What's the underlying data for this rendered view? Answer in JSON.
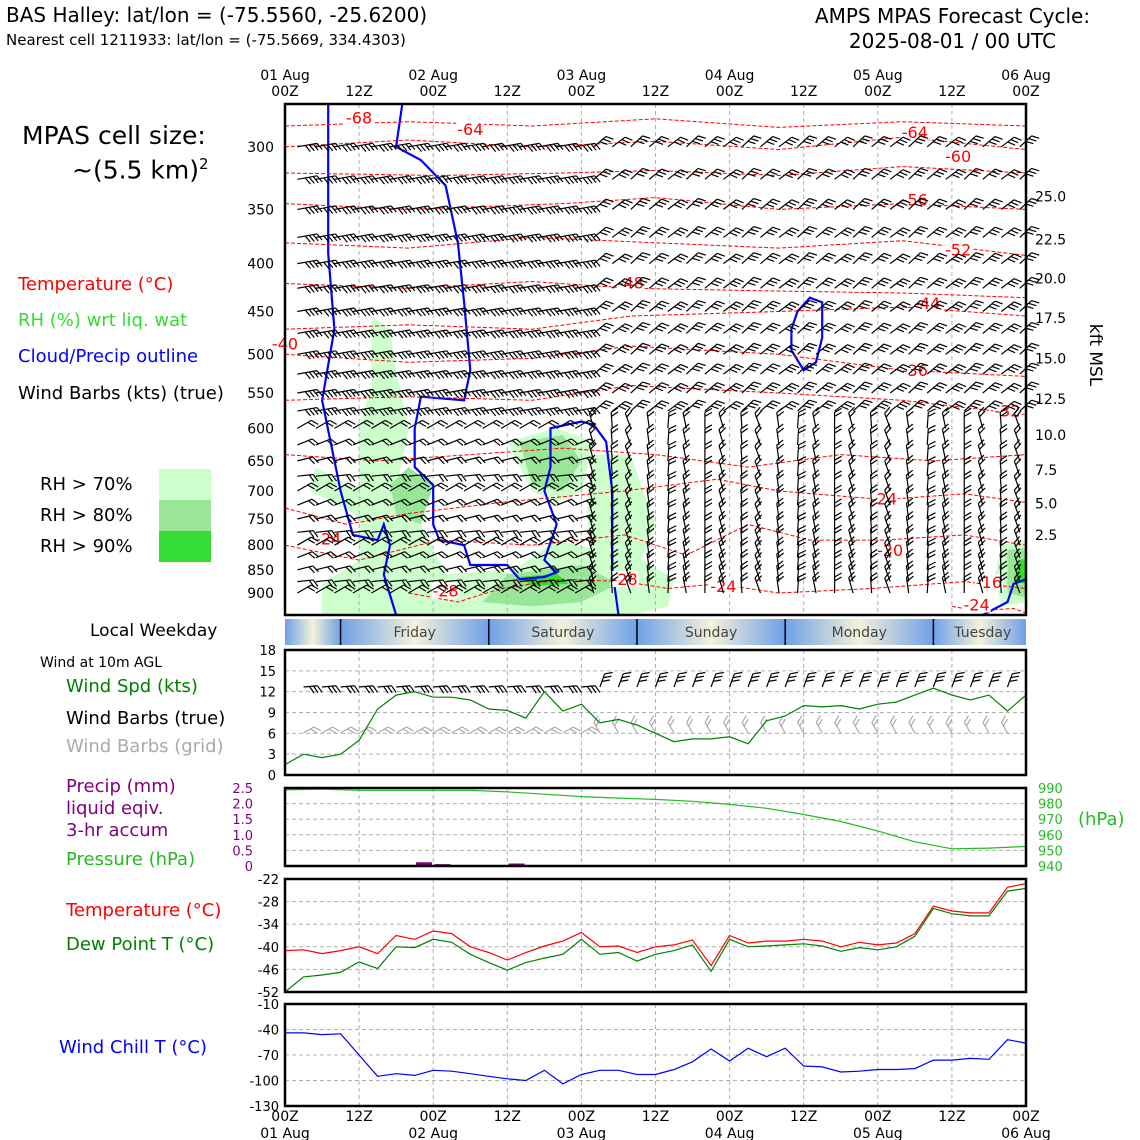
{
  "header": {
    "station_title": "BAS Halley: lat/lon = (-75.5560, -25.6200)",
    "nearest_cell": "Nearest cell 1211933: lat/lon = (-75.5669, 334.4303)",
    "forecast_line1": "AMPS MPAS Forecast Cycle:",
    "forecast_line2": "2025-08-01 / 00 UTC"
  },
  "cell_size": {
    "label": "MPAS cell size:",
    "value": "~(5.5 km)",
    "exponent": "2"
  },
  "legend": {
    "temperature": "Temperature (°C)",
    "rh": "RH (%) wrt liq. wat",
    "cloud": "Cloud/Precip outline",
    "wind": "Wind Barbs (kts) (true)",
    "rh70": "RH > 70%",
    "rh80": "RH > 80%",
    "rh90": "RH > 90%"
  },
  "colors": {
    "temperature": "#ff0000",
    "rh_label": "#33dd33",
    "cloud": "#0000ff",
    "rh70": "#ccffcc",
    "rh80": "#99e699",
    "rh90": "#33dd33",
    "wind_speed": "#008000",
    "barbs_grid": "#aaaaaa",
    "precip": "#800080",
    "pressure": "#22bb22",
    "dewpoint": "#008000",
    "wind_chill": "#0000ff",
    "grid": "#b0b0b0"
  },
  "time_axis": {
    "top_dates": [
      "01 Aug",
      "",
      "02 Aug",
      "",
      "03 Aug",
      "",
      "04 Aug",
      "",
      "05 Aug",
      "",
      "06 Aug"
    ],
    "hours": [
      "00Z",
      "12Z",
      "00Z",
      "12Z",
      "00Z",
      "12Z",
      "00Z",
      "12Z",
      "00Z",
      "12Z",
      "00Z"
    ],
    "bottom_dates": [
      "01 Aug",
      "",
      "02 Aug",
      "",
      "03 Aug",
      "",
      "04 Aug",
      "",
      "05 Aug",
      "",
      "06 Aug"
    ]
  },
  "weekday": {
    "label": "Local Weekday",
    "days": [
      "Friday",
      "Saturday",
      "Sunday",
      "Monday",
      "Tuesday"
    ]
  },
  "wind_panel": {
    "header": "Wind at 10m AGL",
    "speed_label": "Wind Spd (kts)",
    "barbs_true_label": "Wind Barbs (true)",
    "barbs_grid_label": "Wind Barbs (grid)"
  },
  "precip_panel": {
    "label_line1": "Precip (mm)",
    "label_line2": "liquid eqiv.",
    "label_line3": "3-hr accum",
    "pressure_label": "Pressure (hPa)",
    "right_unit": "(hPa)"
  },
  "temp_panel": {
    "temp_label": "Temperature (°C)",
    "dew_label": "Dew Point T (°C)"
  },
  "chill_panel": {
    "label": "Wind Chill T (°C)"
  },
  "chart_data": [
    {
      "type": "heatmap",
      "panel": "vertical_cross_section",
      "x_hours": [
        0,
        120
      ],
      "y_pressure_hpa": [
        950,
        270
      ],
      "y_ticks": [
        300,
        350,
        400,
        450,
        500,
        550,
        600,
        650,
        700,
        750,
        800,
        850,
        900
      ],
      "right_axis_label": "kft MSL",
      "right_ticks": [
        {
          "p": 339,
          "v": "25.0"
        },
        {
          "p": 377,
          "v": "22.5"
        },
        {
          "p": 415,
          "v": "20.0"
        },
        {
          "p": 457,
          "v": "17.5"
        },
        {
          "p": 505,
          "v": "15.0"
        },
        {
          "p": 558,
          "v": "12.5"
        },
        {
          "p": 610,
          "v": "10.0"
        },
        {
          "p": 665,
          "v": "7.5"
        },
        {
          "p": 722,
          "v": "5.0"
        },
        {
          "p": 780,
          "v": "2.5"
        }
      ],
      "temp_contour_labels": [
        {
          "x": 12,
          "p": 282,
          "v": "-68"
        },
        {
          "x": 30,
          "p": 290,
          "v": "-64"
        },
        {
          "x": 102,
          "p": 292,
          "v": "-64"
        },
        {
          "x": 109,
          "p": 310,
          "v": "-60"
        },
        {
          "x": 102,
          "p": 345,
          "v": "-56"
        },
        {
          "x": 109,
          "p": 390,
          "v": "-52"
        },
        {
          "x": 56,
          "p": 423,
          "v": "-48"
        },
        {
          "x": 104,
          "p": 445,
          "v": "-44"
        },
        {
          "x": 0,
          "p": 492,
          "v": "-40"
        },
        {
          "x": 102,
          "p": 525,
          "v": "-36"
        },
        {
          "x": 117,
          "p": 580,
          "v": "-32"
        },
        {
          "x": 97,
          "p": 720,
          "v": "-24"
        },
        {
          "x": 7,
          "p": 795,
          "v": "-24"
        },
        {
          "x": 98,
          "p": 818,
          "v": "-20"
        },
        {
          "x": 26,
          "p": 903,
          "v": "-28"
        },
        {
          "x": 55,
          "p": 878,
          "v": "-28"
        },
        {
          "x": 71,
          "p": 893,
          "v": "-24"
        },
        {
          "x": 114,
          "p": 885,
          "v": "-16"
        },
        {
          "x": 112,
          "p": 935,
          "v": "-24"
        }
      ]
    },
    {
      "type": "line",
      "panel": "wind_speed_10m",
      "title": "Wind Spd (kts)",
      "x_hours": [
        0,
        3,
        6,
        9,
        12,
        15,
        18,
        21,
        24,
        27,
        30,
        33,
        36,
        39,
        42,
        45,
        48,
        51,
        54,
        57,
        60,
        63,
        66,
        69,
        72,
        75,
        78,
        81,
        84,
        87,
        90,
        93,
        96,
        99,
        102,
        105,
        108,
        111,
        114,
        117,
        120
      ],
      "values": [
        1.5,
        3,
        2.5,
        3,
        5,
        9.5,
        11.5,
        12,
        11.2,
        11.2,
        10.8,
        9.5,
        9.3,
        8.2,
        12,
        9.2,
        10.2,
        7.5,
        8,
        7.2,
        6,
        4.8,
        5.2,
        5.2,
        5.5,
        4.5,
        7.8,
        8.5,
        10,
        9.8,
        10,
        9.5,
        10.2,
        10.5,
        11.5,
        12.5,
        11.5,
        10.8,
        11.5,
        9.2,
        11.5
      ],
      "ylim": [
        0,
        18
      ],
      "y_ticks": [
        0,
        3,
        6,
        9,
        12,
        15,
        18
      ]
    },
    {
      "type": "bar",
      "panel": "precip",
      "title": "Precip (mm)",
      "x_hours": [
        22.5,
        25.5,
        37.5
      ],
      "values": [
        0.12,
        0.06,
        0.08
      ],
      "ylim": [
        0,
        2.5
      ],
      "y_ticks": [
        "0",
        "0.5",
        "1.0",
        "1.5",
        "2.0",
        "2.5"
      ]
    },
    {
      "type": "line",
      "panel": "pressure",
      "title": "Pressure (hPa)",
      "x_hours": [
        0,
        6,
        12,
        24,
        30,
        36,
        42,
        48,
        54,
        60,
        66,
        72,
        78,
        84,
        90,
        96,
        102,
        108,
        114,
        120
      ],
      "values": [
        988.8,
        989.2,
        988.5,
        988.5,
        988.5,
        987.5,
        986,
        984.5,
        983.5,
        982.7,
        981.5,
        979.5,
        977,
        973,
        968.5,
        962.5,
        955.5,
        951,
        951.5,
        952.5
      ],
      "ylim": [
        940,
        990
      ],
      "y_ticks": [
        940,
        950,
        960,
        970,
        980,
        990
      ]
    },
    {
      "type": "line",
      "panel": "temperature_dewpoint",
      "x_hours": [
        0,
        3,
        6,
        9,
        12,
        15,
        18,
        21,
        24,
        27,
        30,
        33,
        36,
        39,
        42,
        45,
        48,
        51,
        54,
        57,
        60,
        63,
        66,
        69,
        72,
        75,
        78,
        81,
        84,
        87,
        90,
        93,
        96,
        99,
        102,
        105,
        108,
        111,
        114,
        117,
        120
      ],
      "series": [
        {
          "name": "Temperature (°C)",
          "values": [
            -41,
            -40.8,
            -41.8,
            -41,
            -40,
            -41.8,
            -37,
            -38,
            -35.8,
            -36.5,
            -40,
            -41.5,
            -43.5,
            -41.5,
            -39.8,
            -38.5,
            -36.2,
            -40,
            -39.8,
            -41.5,
            -40,
            -39.5,
            -38.2,
            -45,
            -37,
            -39,
            -38.5,
            -38.5,
            -38,
            -38.5,
            -40,
            -38.8,
            -39.5,
            -39,
            -36.5,
            -29.2,
            -30.5,
            -31,
            -31,
            -24.2,
            -23.2
          ]
        },
        {
          "name": "Dew Point T (°C)",
          "values": [
            -52,
            -48,
            -47.5,
            -46.8,
            -44,
            -45.8,
            -40,
            -40.2,
            -38,
            -38.8,
            -42,
            -44.2,
            -46.2,
            -44.2,
            -43,
            -42,
            -38,
            -42,
            -41.5,
            -43.8,
            -42,
            -41,
            -39.5,
            -46.5,
            -38,
            -40,
            -39.8,
            -39.5,
            -39.2,
            -39.8,
            -41.2,
            -40.2,
            -40.8,
            -40,
            -37.2,
            -29.8,
            -31.2,
            -31.8,
            -31.8,
            -25.2,
            -24.5
          ]
        }
      ],
      "ylim": [
        -52,
        -22
      ],
      "y_ticks": [
        -52,
        -46,
        -40,
        -34,
        -28,
        -22
      ]
    },
    {
      "type": "line",
      "panel": "wind_chill",
      "title": "Wind Chill T (°C)",
      "x_hours": [
        0,
        3,
        6,
        9,
        12,
        15,
        18,
        21,
        24,
        27,
        30,
        33,
        36,
        39,
        42,
        45,
        48,
        51,
        54,
        57,
        60,
        63,
        66,
        69,
        72,
        75,
        78,
        81,
        84,
        87,
        90,
        93,
        96,
        99,
        102,
        105,
        108,
        111,
        114,
        117,
        120
      ],
      "values": [
        -44,
        -44,
        -46,
        -45,
        -70,
        -95,
        -92,
        -94,
        -88,
        -89,
        -92,
        -95,
        -98,
        -100,
        -88,
        -104,
        -93,
        -88,
        -88,
        -93,
        -93,
        -87,
        -78,
        -63,
        -77,
        -62,
        -72,
        -62,
        -83,
        -84,
        -90,
        -89,
        -87,
        -87,
        -86,
        -76,
        -76,
        -74,
        -75,
        -52,
        -56
      ],
      "ylim": [
        -130,
        -10
      ],
      "y_ticks": [
        -130,
        -100,
        -70,
        -40,
        -10
      ]
    }
  ]
}
